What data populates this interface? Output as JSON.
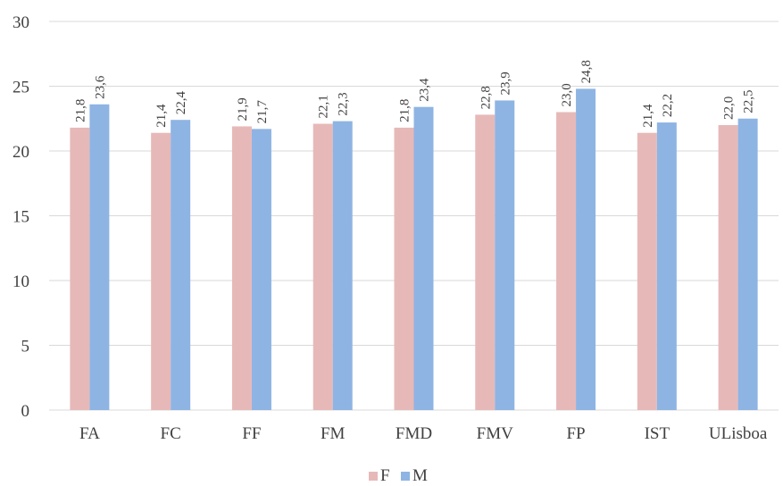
{
  "chart_data": {
    "type": "bar",
    "title": "",
    "xlabel": "",
    "ylabel": "",
    "ylim": [
      0,
      30
    ],
    "yticks": [
      0,
      5,
      10,
      15,
      20,
      25,
      30
    ],
    "grid": true,
    "legend_position": "bottom",
    "categories": [
      "FA",
      "FC",
      "FF",
      "FM",
      "FMD",
      "FMV",
      "FP",
      "IST",
      "ULisboa"
    ],
    "series": [
      {
        "name": "F",
        "color": "#E6B9B8",
        "values": [
          21.8,
          21.4,
          21.9,
          22.1,
          21.8,
          22.8,
          23.0,
          21.4,
          22.0
        ],
        "labels": [
          "21,8",
          "21,4",
          "21,9",
          "22,1",
          "21,8",
          "22,8",
          "23,0",
          "21,4",
          "22,0"
        ]
      },
      {
        "name": "M",
        "color": "#8EB4E3",
        "values": [
          23.6,
          22.4,
          21.7,
          22.3,
          23.4,
          23.9,
          24.8,
          22.2,
          22.5
        ],
        "labels": [
          "23,6",
          "22,4",
          "21,7",
          "22,3",
          "23,4",
          "23,9",
          "24,8",
          "22,2",
          "22,5"
        ]
      }
    ]
  }
}
